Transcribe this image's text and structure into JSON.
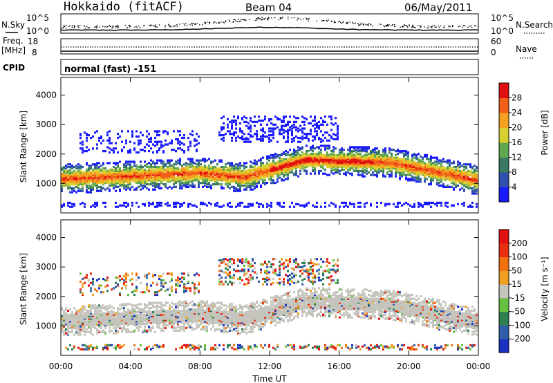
{
  "header": {
    "title": "Hokkaido (fitACF)",
    "beam": "Beam 04",
    "date": "06/May/2011"
  },
  "noise_panel": {
    "left_label": "N.Sky",
    "right_label": "N.Search",
    "left_ticks": [
      "10^5",
      "10^0"
    ],
    "right_ticks": [
      "10^5",
      "10^0"
    ]
  },
  "freq_panel": {
    "left_label_1": "Freq.",
    "left_label_2": "[MHz]",
    "right_label": "Nave",
    "left_ticks": [
      "18",
      "8"
    ],
    "right_ticks": [
      "60",
      "0"
    ]
  },
  "cpid": {
    "label": "CPID",
    "text": "normal (fast) -151"
  },
  "chart_data": [
    {
      "type": "heatmap",
      "ylabel": "Slant Range [km]",
      "ylim": [
        0,
        4600
      ],
      "yticks": [
        "1000",
        "2000",
        "3000",
        "4000"
      ],
      "colorbar": {
        "label": "Power [dB]",
        "ticks": [
          "4",
          "8",
          "12",
          "16",
          "20",
          "24",
          "28"
        ],
        "range": [
          0,
          32
        ],
        "colors": [
          "#1a1aff",
          "#3050b0",
          "#3a7a60",
          "#60a850",
          "#d8d030",
          "#f5a020",
          "#f06018",
          "#e01010"
        ]
      }
    },
    {
      "type": "heatmap",
      "ylabel": "Slant Range [km]",
      "ylim": [
        0,
        4600
      ],
      "yticks": [
        "1000",
        "2000",
        "3000",
        "4000"
      ],
      "colorbar": {
        "label": "Velocity [m s⁻¹]",
        "ticks": [
          "200",
          "100",
          "50",
          "15",
          "-15",
          "-50",
          "-100",
          "-200"
        ],
        "colors": [
          "#1a30c0",
          "#2f5faa",
          "#2e8050",
          "#68c040",
          "#c4c4bc",
          "#f0a020",
          "#f07010",
          "#e83010",
          "#e01010"
        ]
      }
    }
  ],
  "time_axis": {
    "label": "Time UT",
    "ticks": [
      "00:00",
      "04:00",
      "08:00",
      "12:00",
      "16:00",
      "20:00",
      "00:00"
    ],
    "range_hours": [
      0,
      24
    ]
  }
}
